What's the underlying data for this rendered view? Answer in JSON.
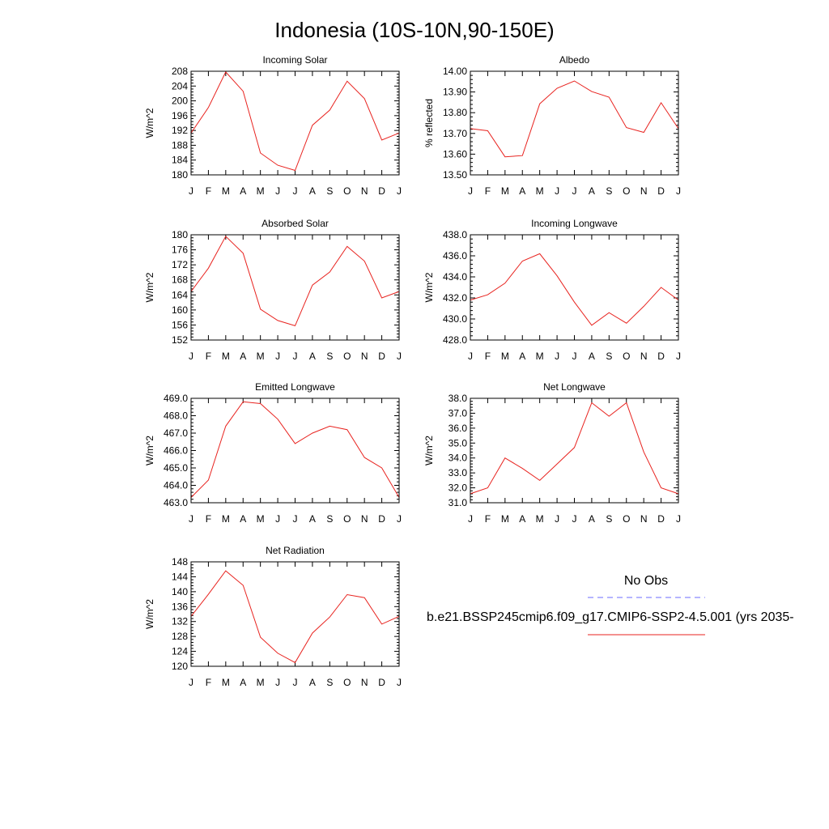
{
  "figure": {
    "title": "Indonesia (10S-10N,90-150E)"
  },
  "legend": {
    "obs_label": "No Obs",
    "model_label": "b.e21.BSSP245cmip6.f09_g17.CMIP6-SSP2-4.5.001 (yrs 2035-",
    "obs_color": "#6b6bff",
    "model_color": "#e8231f"
  },
  "chart_data": [
    {
      "type": "line",
      "title": "Incoming Solar",
      "ylabel": "W/m^2",
      "x": [
        "J",
        "F",
        "M",
        "A",
        "M",
        "J",
        "J",
        "A",
        "S",
        "O",
        "N",
        "D",
        "J"
      ],
      "ylim": [
        180,
        208
      ],
      "yticks": [
        "208",
        "204",
        "200",
        "196",
        "192",
        "188",
        "184",
        "180"
      ],
      "series": [
        {
          "color": "#e8231f",
          "values": [
            191.3,
            198.2,
            207.8,
            202.6,
            185.9,
            182.6,
            181.2,
            193.4,
            197.5,
            205.3,
            200.6,
            189.4,
            191.3
          ]
        }
      ]
    },
    {
      "type": "line",
      "title": "Albedo",
      "ylabel": "% reflected",
      "x": [
        "J",
        "F",
        "M",
        "A",
        "M",
        "J",
        "J",
        "A",
        "S",
        "O",
        "N",
        "D",
        "J"
      ],
      "ylim": [
        13.5,
        14.0
      ],
      "yticks": [
        "14.00",
        "13.90",
        "13.80",
        "13.70",
        "13.60",
        "13.50"
      ],
      "series": [
        {
          "color": "#e8231f",
          "values": [
            13.723,
            13.713,
            13.587,
            13.593,
            13.843,
            13.918,
            13.953,
            13.902,
            13.875,
            13.728,
            13.705,
            13.848,
            13.723
          ]
        }
      ]
    },
    {
      "type": "line",
      "title": "Absorbed Solar",
      "ylabel": "W/m^2",
      "x": [
        "J",
        "F",
        "M",
        "A",
        "M",
        "J",
        "J",
        "A",
        "S",
        "O",
        "N",
        "D",
        "J"
      ],
      "ylim": [
        152,
        180
      ],
      "yticks": [
        "180",
        "176",
        "172",
        "168",
        "164",
        "160",
        "156",
        "152"
      ],
      "series": [
        {
          "color": "#e8231f",
          "values": [
            164.9,
            171.1,
            179.6,
            175.1,
            160.2,
            157.2,
            155.8,
            166.6,
            170.1,
            176.9,
            173.0,
            163.2,
            164.9
          ]
        }
      ]
    },
    {
      "type": "line",
      "title": "Incoming Longwave",
      "ylabel": "W/m^2",
      "x": [
        "J",
        "F",
        "M",
        "A",
        "M",
        "J",
        "J",
        "A",
        "S",
        "O",
        "N",
        "D",
        "J"
      ],
      "ylim": [
        428.0,
        438.0
      ],
      "yticks": [
        "438.0",
        "436.0",
        "434.0",
        "432.0",
        "430.0",
        "428.0"
      ],
      "series": [
        {
          "color": "#e8231f",
          "values": [
            431.8,
            432.3,
            433.4,
            435.5,
            436.2,
            434.1,
            431.6,
            429.4,
            430.6,
            429.6,
            431.2,
            433.0,
            431.8
          ]
        }
      ]
    },
    {
      "type": "line",
      "title": "Emitted Longwave",
      "ylabel": "W/m^2",
      "x": [
        "J",
        "F",
        "M",
        "A",
        "M",
        "J",
        "J",
        "A",
        "S",
        "O",
        "N",
        "D",
        "J"
      ],
      "ylim": [
        463.0,
        469.0
      ],
      "yticks": [
        "469.0",
        "468.0",
        "467.0",
        "466.0",
        "465.0",
        "464.0",
        "463.0"
      ],
      "series": [
        {
          "color": "#e8231f",
          "values": [
            463.3,
            464.3,
            467.4,
            468.8,
            468.7,
            467.8,
            466.4,
            467.0,
            467.4,
            467.2,
            465.6,
            465.0,
            463.3
          ]
        }
      ]
    },
    {
      "type": "line",
      "title": "Net Longwave",
      "ylabel": "W/m^2",
      "x": [
        "J",
        "F",
        "M",
        "A",
        "M",
        "J",
        "J",
        "A",
        "S",
        "O",
        "N",
        "D",
        "J"
      ],
      "ylim": [
        31.0,
        38.0
      ],
      "yticks": [
        "38.0",
        "37.0",
        "36.0",
        "35.0",
        "34.0",
        "33.0",
        "32.0",
        "31.0"
      ],
      "series": [
        {
          "color": "#e8231f",
          "values": [
            31.6,
            32.0,
            34.0,
            33.3,
            32.5,
            33.6,
            34.7,
            37.7,
            36.8,
            37.7,
            34.4,
            32.0,
            31.6
          ]
        }
      ]
    },
    {
      "type": "line",
      "title": "Net Radiation",
      "ylabel": "W/m^2",
      "x": [
        "J",
        "F",
        "M",
        "A",
        "M",
        "J",
        "J",
        "A",
        "S",
        "O",
        "N",
        "D",
        "J"
      ],
      "ylim": [
        120,
        148
      ],
      "yticks": [
        "148",
        "144",
        "140",
        "136",
        "132",
        "128",
        "124",
        "120"
      ],
      "series": [
        {
          "color": "#e8231f",
          "values": [
            133.4,
            139.3,
            145.6,
            141.7,
            127.8,
            123.5,
            121.0,
            128.9,
            133.2,
            139.2,
            138.4,
            131.3,
            133.4
          ]
        }
      ]
    }
  ]
}
